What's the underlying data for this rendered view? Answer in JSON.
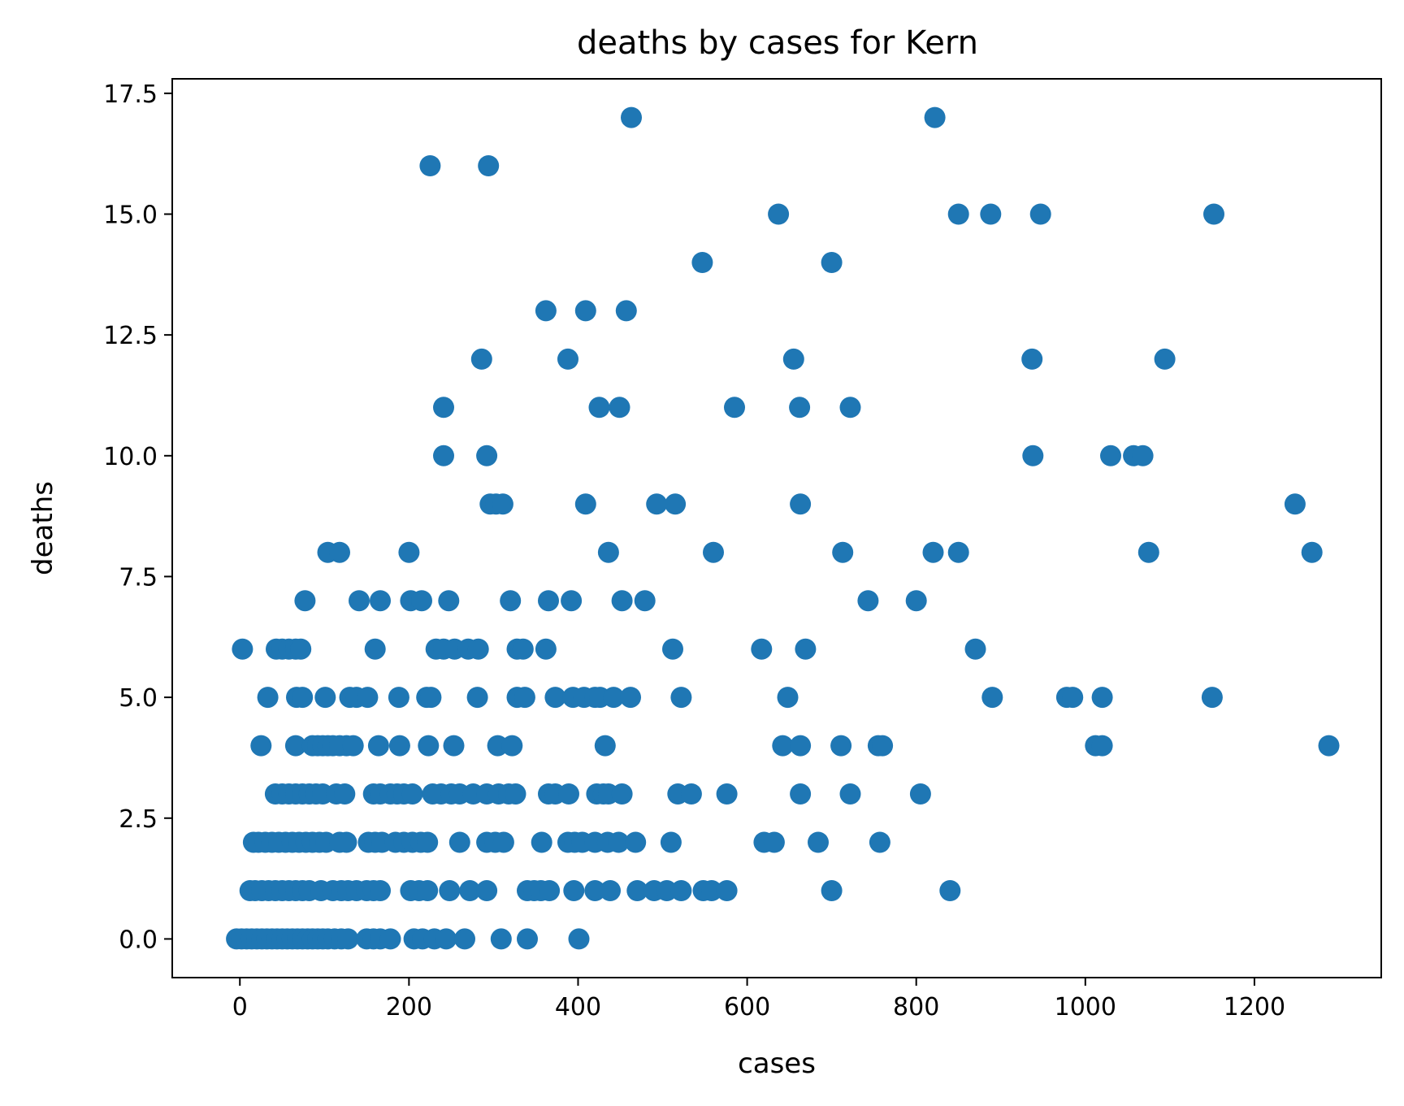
{
  "chart_data": {
    "type": "scatter",
    "title": "deaths by cases for Kern",
    "xlabel": "cases",
    "ylabel": "deaths",
    "xlim": [
      -80,
      1350
    ],
    "ylim": [
      -0.8,
      17.8
    ],
    "x_ticks": [
      0,
      200,
      400,
      600,
      800,
      1000,
      1200
    ],
    "x_tick_labels": [
      "0",
      "200",
      "400",
      "600",
      "800",
      "1000",
      "1200"
    ],
    "y_ticks": [
      0,
      2.5,
      5,
      7.5,
      10,
      12.5,
      15,
      17.5
    ],
    "y_tick_labels": [
      "0.0",
      "2.5",
      "5.0",
      "7.5",
      "10.0",
      "12.5",
      "15.0",
      "17.5"
    ],
    "grid": false,
    "marker_color": "#1f77b4",
    "series": [
      {
        "points": [
          [
            463,
            17
          ],
          [
            822,
            17
          ],
          [
            225,
            16
          ],
          [
            294,
            16
          ],
          [
            637,
            15
          ],
          [
            850,
            15
          ],
          [
            888,
            15
          ],
          [
            947,
            15
          ],
          [
            1152,
            15
          ],
          [
            547,
            14
          ],
          [
            700,
            14
          ],
          [
            362,
            13
          ],
          [
            409,
            13
          ],
          [
            457,
            13
          ],
          [
            286,
            12
          ],
          [
            388,
            12
          ],
          [
            655,
            12
          ],
          [
            937,
            12
          ],
          [
            1094,
            12
          ],
          [
            241,
            11
          ],
          [
            425,
            11
          ],
          [
            449,
            11
          ],
          [
            585,
            11
          ],
          [
            662,
            11
          ],
          [
            722,
            11
          ],
          [
            241,
            10
          ],
          [
            292,
            10
          ],
          [
            938,
            10
          ],
          [
            1030,
            10
          ],
          [
            1057,
            10
          ],
          [
            1068,
            10
          ],
          [
            296,
            9
          ],
          [
            303,
            9
          ],
          [
            311,
            9
          ],
          [
            409,
            9
          ],
          [
            493,
            9
          ],
          [
            515,
            9
          ],
          [
            663,
            9
          ],
          [
            1248,
            9
          ],
          [
            104,
            8
          ],
          [
            118,
            8
          ],
          [
            200,
            8
          ],
          [
            436,
            8
          ],
          [
            560,
            8
          ],
          [
            713,
            8
          ],
          [
            820,
            8
          ],
          [
            850,
            8
          ],
          [
            1075,
            8
          ],
          [
            1268,
            8
          ],
          [
            77,
            7
          ],
          [
            141,
            7
          ],
          [
            166,
            7
          ],
          [
            202,
            7
          ],
          [
            215,
            7
          ],
          [
            247,
            7
          ],
          [
            320,
            7
          ],
          [
            365,
            7
          ],
          [
            392,
            7
          ],
          [
            452,
            7
          ],
          [
            479,
            7
          ],
          [
            743,
            7
          ],
          [
            800,
            7
          ],
          [
            3,
            6
          ],
          [
            43,
            6
          ],
          [
            50,
            6
          ],
          [
            58,
            6
          ],
          [
            66,
            6
          ],
          [
            72,
            6
          ],
          [
            160,
            6
          ],
          [
            232,
            6
          ],
          [
            241,
            6
          ],
          [
            254,
            6
          ],
          [
            270,
            6
          ],
          [
            282,
            6
          ],
          [
            328,
            6
          ],
          [
            335,
            6
          ],
          [
            362,
            6
          ],
          [
            512,
            6
          ],
          [
            617,
            6
          ],
          [
            669,
            6
          ],
          [
            870,
            6
          ],
          [
            33,
            5
          ],
          [
            67,
            5
          ],
          [
            74,
            5
          ],
          [
            101,
            5
          ],
          [
            130,
            5
          ],
          [
            138,
            5
          ],
          [
            151,
            5
          ],
          [
            188,
            5
          ],
          [
            221,
            5
          ],
          [
            226,
            5
          ],
          [
            281,
            5
          ],
          [
            328,
            5
          ],
          [
            337,
            5
          ],
          [
            373,
            5
          ],
          [
            394,
            5
          ],
          [
            407,
            5
          ],
          [
            420,
            5
          ],
          [
            426,
            5
          ],
          [
            442,
            5
          ],
          [
            462,
            5
          ],
          [
            522,
            5
          ],
          [
            648,
            5
          ],
          [
            890,
            5
          ],
          [
            978,
            5
          ],
          [
            985,
            5
          ],
          [
            1020,
            5
          ],
          [
            1150,
            5
          ],
          [
            25,
            4
          ],
          [
            66,
            4
          ],
          [
            86,
            4
          ],
          [
            92,
            4
          ],
          [
            98,
            4
          ],
          [
            104,
            4
          ],
          [
            110,
            4
          ],
          [
            118,
            4
          ],
          [
            126,
            4
          ],
          [
            134,
            4
          ],
          [
            164,
            4
          ],
          [
            189,
            4
          ],
          [
            223,
            4
          ],
          [
            253,
            4
          ],
          [
            305,
            4
          ],
          [
            322,
            4
          ],
          [
            432,
            4
          ],
          [
            642,
            4
          ],
          [
            663,
            4
          ],
          [
            711,
            4
          ],
          [
            755,
            4
          ],
          [
            760,
            4
          ],
          [
            1012,
            4
          ],
          [
            1020,
            4
          ],
          [
            1288,
            4
          ],
          [
            42,
            3
          ],
          [
            50,
            3
          ],
          [
            58,
            3
          ],
          [
            66,
            3
          ],
          [
            74,
            3
          ],
          [
            82,
            3
          ],
          [
            90,
            3
          ],
          [
            98,
            3
          ],
          [
            114,
            3
          ],
          [
            124,
            3
          ],
          [
            158,
            3
          ],
          [
            166,
            3
          ],
          [
            178,
            3
          ],
          [
            186,
            3
          ],
          [
            194,
            3
          ],
          [
            204,
            3
          ],
          [
            228,
            3
          ],
          [
            238,
            3
          ],
          [
            250,
            3
          ],
          [
            260,
            3
          ],
          [
            276,
            3
          ],
          [
            292,
            3
          ],
          [
            306,
            3
          ],
          [
            318,
            3
          ],
          [
            326,
            3
          ],
          [
            365,
            3
          ],
          [
            373,
            3
          ],
          [
            389,
            3
          ],
          [
            422,
            3
          ],
          [
            430,
            3
          ],
          [
            436,
            3
          ],
          [
            452,
            3
          ],
          [
            518,
            3
          ],
          [
            534,
            3
          ],
          [
            576,
            3
          ],
          [
            663,
            3
          ],
          [
            722,
            3
          ],
          [
            805,
            3
          ],
          [
            16,
            2
          ],
          [
            22,
            2
          ],
          [
            30,
            2
          ],
          [
            38,
            2
          ],
          [
            46,
            2
          ],
          [
            54,
            2
          ],
          [
            62,
            2
          ],
          [
            70,
            2
          ],
          [
            78,
            2
          ],
          [
            86,
            2
          ],
          [
            94,
            2
          ],
          [
            102,
            2
          ],
          [
            118,
            2
          ],
          [
            126,
            2
          ],
          [
            152,
            2
          ],
          [
            160,
            2
          ],
          [
            168,
            2
          ],
          [
            184,
            2
          ],
          [
            194,
            2
          ],
          [
            204,
            2
          ],
          [
            214,
            2
          ],
          [
            222,
            2
          ],
          [
            260,
            2
          ],
          [
            292,
            2
          ],
          [
            302,
            2
          ],
          [
            312,
            2
          ],
          [
            357,
            2
          ],
          [
            388,
            2
          ],
          [
            396,
            2
          ],
          [
            405,
            2
          ],
          [
            420,
            2
          ],
          [
            435,
            2
          ],
          [
            448,
            2
          ],
          [
            468,
            2
          ],
          [
            510,
            2
          ],
          [
            620,
            2
          ],
          [
            632,
            2
          ],
          [
            684,
            2
          ],
          [
            757,
            2
          ],
          [
            12,
            1
          ],
          [
            18,
            1
          ],
          [
            26,
            1
          ],
          [
            34,
            1
          ],
          [
            42,
            1
          ],
          [
            50,
            1
          ],
          [
            58,
            1
          ],
          [
            66,
            1
          ],
          [
            74,
            1
          ],
          [
            82,
            1
          ],
          [
            96,
            1
          ],
          [
            110,
            1
          ],
          [
            120,
            1
          ],
          [
            128,
            1
          ],
          [
            138,
            1
          ],
          [
            150,
            1
          ],
          [
            158,
            1
          ],
          [
            166,
            1
          ],
          [
            202,
            1
          ],
          [
            212,
            1
          ],
          [
            222,
            1
          ],
          [
            248,
            1
          ],
          [
            272,
            1
          ],
          [
            292,
            1
          ],
          [
            340,
            1
          ],
          [
            348,
            1
          ],
          [
            356,
            1
          ],
          [
            366,
            1
          ],
          [
            395,
            1
          ],
          [
            420,
            1
          ],
          [
            438,
            1
          ],
          [
            470,
            1
          ],
          [
            490,
            1
          ],
          [
            505,
            1
          ],
          [
            522,
            1
          ],
          [
            548,
            1
          ],
          [
            558,
            1
          ],
          [
            576,
            1
          ],
          [
            700,
            1
          ],
          [
            840,
            1
          ],
          [
            -4,
            0
          ],
          [
            2,
            0
          ],
          [
            8,
            0
          ],
          [
            14,
            0
          ],
          [
            20,
            0
          ],
          [
            26,
            0
          ],
          [
            32,
            0
          ],
          [
            38,
            0
          ],
          [
            44,
            0
          ],
          [
            50,
            0
          ],
          [
            56,
            0
          ],
          [
            62,
            0
          ],
          [
            68,
            0
          ],
          [
            74,
            0
          ],
          [
            80,
            0
          ],
          [
            86,
            0
          ],
          [
            92,
            0
          ],
          [
            98,
            0
          ],
          [
            104,
            0
          ],
          [
            112,
            0
          ],
          [
            120,
            0
          ],
          [
            128,
            0
          ],
          [
            150,
            0
          ],
          [
            158,
            0
          ],
          [
            166,
            0
          ],
          [
            178,
            0
          ],
          [
            206,
            0
          ],
          [
            216,
            0
          ],
          [
            230,
            0
          ],
          [
            244,
            0
          ],
          [
            266,
            0
          ],
          [
            309,
            0
          ],
          [
            340,
            0
          ],
          [
            401,
            0
          ]
        ]
      }
    ]
  }
}
